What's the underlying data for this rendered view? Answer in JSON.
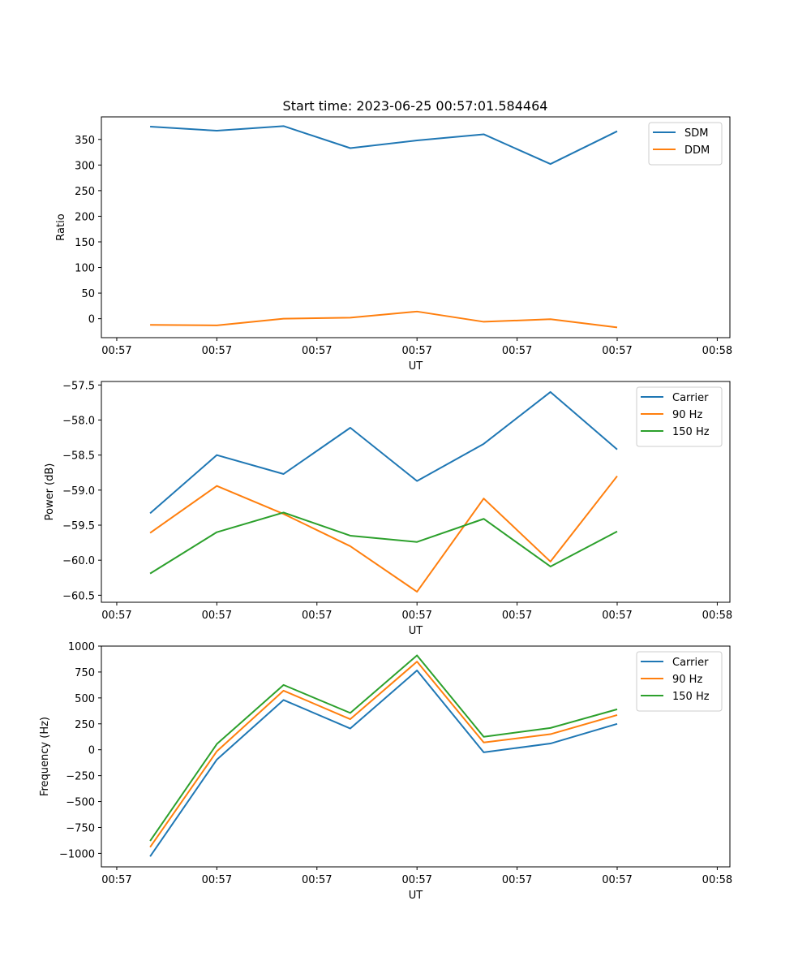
{
  "figure": {
    "title": "Start time: 2023-06-25 00:57:01.584464"
  },
  "chart_data": [
    {
      "type": "line",
      "title": "Start time: 2023-06-25 00:57:01.584464",
      "xlabel": "UT",
      "ylabel": "Ratio",
      "x_ticks": [
        "00:57",
        "00:57",
        "00:57",
        "00:57",
        "00:57",
        "00:57",
        "00:58"
      ],
      "y_ticks": [
        0,
        50,
        100,
        150,
        200,
        250,
        300,
        350
      ],
      "ylim": [
        -37,
        394
      ],
      "x_sample_positions": [
        1,
        2,
        3,
        4,
        5,
        6,
        7,
        8
      ],
      "legend_position": "top-right",
      "series": [
        {
          "name": "SDM",
          "color": "#1f77b4",
          "values": [
            375,
            367,
            376,
            333,
            348,
            360,
            302,
            366
          ]
        },
        {
          "name": "DDM",
          "color": "#ff7f0e",
          "values": [
            -12,
            -13,
            0,
            2,
            14,
            -6,
            -1,
            -17
          ]
        }
      ]
    },
    {
      "type": "line",
      "title": "",
      "xlabel": "UT",
      "ylabel": "Power (dB)",
      "x_ticks": [
        "00:57",
        "00:57",
        "00:57",
        "00:57",
        "00:57",
        "00:57",
        "00:58"
      ],
      "y_ticks": [
        -60.5,
        -60.0,
        -59.5,
        -59.0,
        -58.5,
        -58.0,
        -57.5
      ],
      "ylim": [
        -60.6,
        -57.45
      ],
      "x_sample_positions": [
        1,
        2,
        3,
        4,
        5,
        6,
        7,
        8
      ],
      "legend_position": "top-right",
      "series": [
        {
          "name": "Carrier",
          "color": "#1f77b4",
          "values": [
            -59.33,
            -58.5,
            -58.77,
            -58.11,
            -58.87,
            -58.34,
            -57.6,
            -58.42
          ]
        },
        {
          "name": "90 Hz",
          "color": "#ff7f0e",
          "values": [
            -59.61,
            -58.94,
            -59.34,
            -59.8,
            -60.45,
            -59.12,
            -60.02,
            -58.8
          ]
        },
        {
          "name": "150 Hz",
          "color": "#2ca02c",
          "values": [
            -60.19,
            -59.6,
            -59.32,
            -59.65,
            -59.74,
            -59.41,
            -60.09,
            -59.59
          ]
        }
      ]
    },
    {
      "type": "line",
      "title": "",
      "xlabel": "UT",
      "ylabel": "Frequency (Hz)",
      "x_ticks": [
        "00:57",
        "00:57",
        "00:57",
        "00:57",
        "00:57",
        "00:57",
        "00:58"
      ],
      "y_ticks": [
        -1000,
        -750,
        -500,
        -250,
        0,
        250,
        500,
        750,
        1000
      ],
      "ylim": [
        -1130,
        1000
      ],
      "x_sample_positions": [
        1,
        2,
        3,
        4,
        5,
        6,
        7,
        8
      ],
      "legend_position": "top-right",
      "series": [
        {
          "name": "Carrier",
          "color": "#1f77b4",
          "values": [
            -1030,
            -95,
            480,
            205,
            765,
            -25,
            60,
            250
          ]
        },
        {
          "name": "90 Hz",
          "color": "#ff7f0e",
          "values": [
            -940,
            -15,
            570,
            295,
            850,
            70,
            150,
            335
          ]
        },
        {
          "name": "150 Hz",
          "color": "#2ca02c",
          "values": [
            -880,
            55,
            625,
            355,
            910,
            125,
            210,
            390
          ]
        }
      ]
    }
  ]
}
